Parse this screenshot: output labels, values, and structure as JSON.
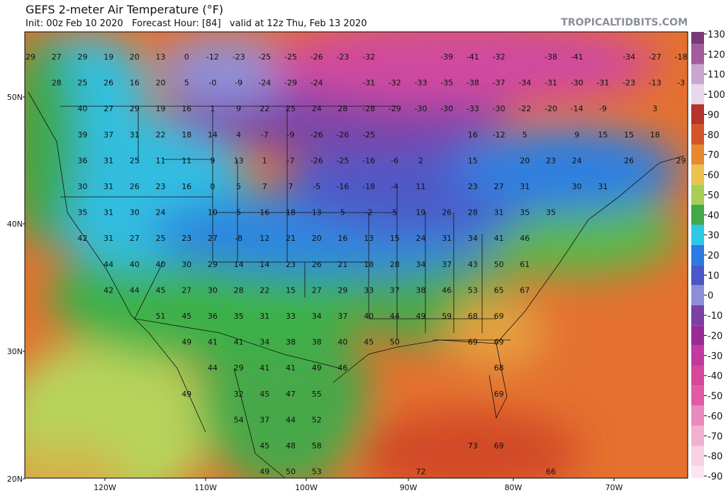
{
  "header": {
    "title": "GEFS 2-meter Air Temperature (°F)",
    "subtitle": "Init: 00z Feb 10 2020   Forecast Hour: [84]   valid at 12z Thu, Feb 13 2020",
    "brand": "TROPICALTIDBITS.COM"
  },
  "map": {
    "lat_labels": [
      "50N",
      "40N",
      "30N",
      "20N"
    ],
    "lon_labels": [
      "120W",
      "110W",
      "100W",
      "90W",
      "80W",
      "70W"
    ],
    "rows": [
      [
        "29",
        "27",
        "29",
        "19",
        "20",
        "13",
        "0",
        "-12",
        "-23",
        "-25",
        "-25",
        "-26",
        "-23",
        "-32",
        null,
        null,
        "-39",
        "-41",
        "-32",
        null,
        "-38",
        "-41",
        null,
        "-34",
        "-27",
        "-18"
      ],
      [
        null,
        "28",
        "25",
        "26",
        "16",
        "20",
        "5",
        "-0",
        "-9",
        "-24",
        "-29",
        "-24",
        null,
        "-31",
        "-32",
        "-33",
        "-35",
        "-38",
        "-37",
        "-34",
        "-31",
        "-30",
        "-31",
        "-23",
        "-13",
        "-3"
      ],
      [
        null,
        null,
        "40",
        "27",
        "29",
        "19",
        "16",
        "1",
        "9",
        "22",
        "25",
        "24",
        "28",
        "-28",
        "-29",
        "-30",
        "-30",
        "-33",
        "-30",
        "-22",
        "-20",
        "-14",
        "-9",
        null,
        "3",
        null
      ],
      [
        null,
        null,
        "39",
        "37",
        "31",
        "22",
        "18",
        "14",
        "4",
        "-7",
        "-9",
        "-26",
        "-26",
        "-25",
        null,
        null,
        null,
        "16",
        "-12",
        "5",
        null,
        "9",
        "15",
        "15",
        "18",
        null
      ],
      [
        null,
        null,
        "36",
        "31",
        "25",
        "11",
        "11",
        "9",
        "13",
        "1",
        "-7",
        "-26",
        "-25",
        "-16",
        "-6",
        "2",
        null,
        "15",
        null,
        "20",
        "23",
        "24",
        null,
        "26",
        null,
        "29"
      ],
      [
        null,
        null,
        "30",
        "31",
        "26",
        "23",
        "16",
        "0",
        "5",
        "7",
        "7",
        "-5",
        "-16",
        "-18",
        "-4",
        "11",
        null,
        "23",
        "27",
        "31",
        null,
        "30",
        "31",
        null,
        null,
        null
      ],
      [
        null,
        null,
        "35",
        "31",
        "30",
        "24",
        null,
        "10",
        "5",
        "16",
        "18",
        "13",
        "5",
        "-2",
        "5",
        "19",
        "26",
        "28",
        "31",
        "35",
        "35",
        null,
        null,
        null,
        null,
        null
      ],
      [
        null,
        null,
        "42",
        "31",
        "27",
        "25",
        "23",
        "27",
        "-8",
        "12",
        "21",
        "20",
        "16",
        "13",
        "15",
        "24",
        "31",
        "34",
        "41",
        "46",
        null,
        null,
        null,
        null,
        null,
        null
      ],
      [
        null,
        null,
        null,
        "44",
        "40",
        "40",
        "30",
        "29",
        "14",
        "14",
        "23",
        "26",
        "21",
        "18",
        "28",
        "34",
        "37",
        "43",
        "50",
        "61",
        null,
        null,
        null,
        null,
        null,
        null
      ],
      [
        null,
        null,
        null,
        "42",
        "44",
        "45",
        "27",
        "30",
        "28",
        "22",
        "15",
        "27",
        "29",
        "33",
        "37",
        "38",
        "46",
        "53",
        "65",
        "67",
        null,
        null,
        null,
        null,
        null,
        null
      ],
      [
        null,
        null,
        null,
        null,
        null,
        "51",
        "45",
        "36",
        "35",
        "31",
        "33",
        "34",
        "37",
        "40",
        "44",
        "49",
        "59",
        "68",
        "69",
        null,
        null,
        null,
        null,
        null,
        null,
        null
      ],
      [
        null,
        null,
        null,
        null,
        null,
        null,
        "49",
        "41",
        "41",
        "34",
        "38",
        "38",
        "40",
        "45",
        "50",
        null,
        null,
        "69",
        "69",
        null,
        null,
        null,
        null,
        null,
        null,
        null
      ],
      [
        null,
        null,
        null,
        null,
        null,
        null,
        null,
        "44",
        "29",
        "41",
        "41",
        "49",
        "46",
        null,
        null,
        null,
        null,
        null,
        "68",
        null,
        null,
        null,
        null,
        null,
        null,
        null
      ],
      [
        null,
        null,
        null,
        null,
        null,
        null,
        "49",
        null,
        "32",
        "45",
        "47",
        "55",
        null,
        null,
        null,
        null,
        null,
        null,
        "69",
        null,
        null,
        null,
        null,
        null,
        null,
        null
      ],
      [
        null,
        null,
        null,
        null,
        null,
        null,
        null,
        null,
        "54",
        "37",
        "44",
        "52",
        null,
        null,
        null,
        null,
        null,
        null,
        null,
        null,
        null,
        null,
        null,
        null,
        null,
        null
      ],
      [
        null,
        null,
        null,
        null,
        null,
        null,
        null,
        null,
        null,
        "45",
        "48",
        "58",
        null,
        null,
        null,
        null,
        null,
        "73",
        "69",
        null,
        null,
        null,
        null,
        null,
        null,
        null
      ],
      [
        null,
        null,
        null,
        null,
        null,
        null,
        null,
        null,
        null,
        "49",
        "50",
        "53",
        null,
        null,
        null,
        "72",
        null,
        null,
        null,
        null,
        "66",
        null,
        null,
        null,
        null,
        null
      ]
    ]
  },
  "colorbar": {
    "ticks": [
      130,
      120,
      110,
      100,
      90,
      80,
      70,
      60,
      50,
      40,
      30,
      20,
      10,
      0,
      -10,
      -20,
      -30,
      -40,
      -50,
      -60,
      -70,
      -80,
      -90
    ],
    "colors": [
      "#7a3a78",
      "#a35c9c",
      "#c9a6d0",
      "#e8d8ea",
      "#b5342c",
      "#d4552a",
      "#e8882f",
      "#edc150",
      "#a7cf55",
      "#43a84a",
      "#2ec8e6",
      "#2b7be3",
      "#4a57c6",
      "#8c8fd8",
      "#7a40a6",
      "#9a2a96",
      "#c23a9e",
      "#d8479c",
      "#e05aa6",
      "#ea89bd",
      "#f2b0d0",
      "#f7d0e2",
      "#fbe5ef"
    ]
  }
}
